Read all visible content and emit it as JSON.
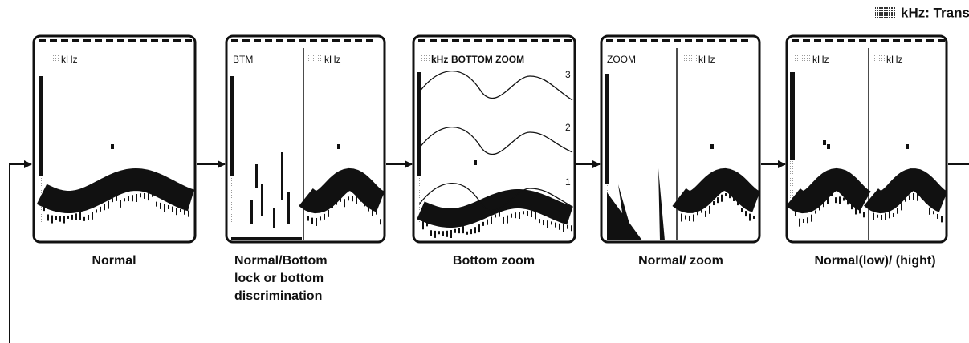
{
  "legend": {
    "label": "kHz: Transmission frequency"
  },
  "panels": [
    {
      "screens": [
        {
          "labels": [
            "kHz"
          ]
        }
      ],
      "caption": [
        "Normal"
      ]
    },
    {
      "screens": [
        {
          "labels": [
            "BTM"
          ]
        },
        {
          "labels": [
            "kHz"
          ]
        }
      ],
      "caption": [
        "Normal/Bottom",
        "lock or bottom",
        "discrimination"
      ]
    },
    {
      "screens": [
        {
          "labels": [
            "kHz",
            "BOTTOM ZOOM"
          ],
          "zoom_lines": [
            "3",
            "2",
            "1"
          ]
        }
      ],
      "caption": [
        "Bottom zoom"
      ]
    },
    {
      "screens": [
        {
          "labels": [
            "ZOOM"
          ]
        },
        {
          "labels": [
            "kHz"
          ]
        }
      ],
      "caption": [
        "Normal/ zoom"
      ]
    },
    {
      "screens": [
        {
          "labels": [
            "kHz"
          ]
        },
        {
          "labels": [
            "kHz"
          ]
        }
      ],
      "caption": [
        "Normal(low)/ (hight)"
      ]
    }
  ]
}
